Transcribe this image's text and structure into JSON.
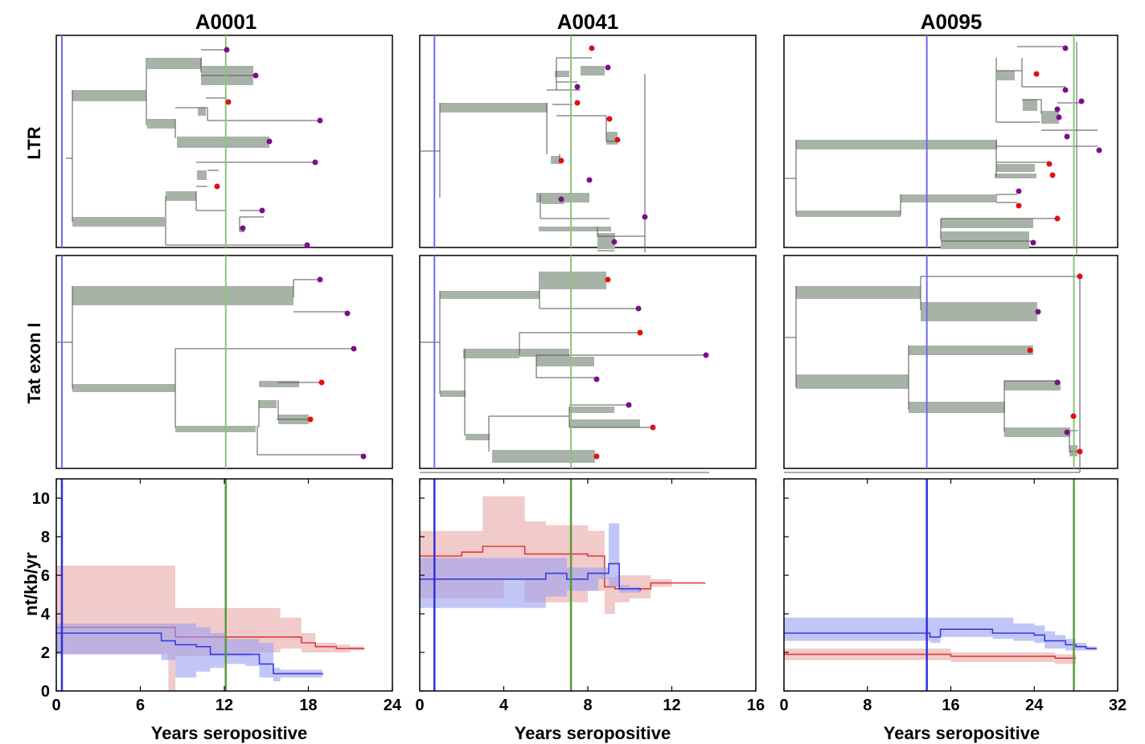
{
  "figure": {
    "columns": [
      "A0001",
      "A0041",
      "A0095"
    ],
    "row_labels": [
      "LTR",
      "Tat exon I"
    ],
    "ylabel": "nt/kb/yr",
    "xlabel": "Years seropositive"
  },
  "colors": {
    "blue_line": "#3b3bd6",
    "green_line": "#5a9a3a",
    "red_series": "#e03c3c",
    "red_band": "#e8a6a6",
    "blue_series": "#3a3ae0",
    "blue_band": "#9aa0f0",
    "tree_box": "#a8b3a8",
    "tip_red": "#e01010",
    "tip_purple": "#7a0f8a"
  },
  "chart_data": [
    {
      "type": "line",
      "title": "A0001",
      "xlabel": "Years seropositive",
      "ylabel": "nt/kb/yr",
      "xlim": [
        0,
        24
      ],
      "ylim": [
        0,
        11
      ],
      "xticks": [
        0,
        6,
        12,
        18,
        24
      ],
      "yticks": [
        0,
        2,
        4,
        6,
        8,
        10
      ],
      "vlines": {
        "blue": 0.4,
        "green": 12.1
      },
      "series": [
        {
          "color": "red",
          "x": [
            0,
            2,
            4,
            6,
            8,
            8.5,
            10,
            12,
            14,
            16,
            17.5,
            18.5,
            20,
            21,
            22
          ],
          "y": [
            3.3,
            3.3,
            3.3,
            3.3,
            3.3,
            2.8,
            2.8,
            2.8,
            2.8,
            2.8,
            2.5,
            2.3,
            2.2,
            2.2,
            2.2
          ],
          "lo": [
            1.9,
            1.9,
            1.9,
            1.9,
            0.0,
            1.8,
            1.8,
            1.8,
            2.0,
            2.2,
            2.0,
            2.0,
            2.0,
            2.1,
            2.1
          ],
          "hi": [
            6.5,
            6.5,
            6.5,
            6.5,
            6.5,
            4.3,
            4.3,
            4.3,
            4.3,
            3.8,
            3.0,
            2.5,
            2.4,
            2.3,
            2.3
          ]
        },
        {
          "color": "blue",
          "x": [
            0,
            2,
            4,
            6,
            7.5,
            8.5,
            10,
            11,
            12,
            13.5,
            14.5,
            15.5,
            16,
            17,
            18,
            19
          ],
          "y": [
            3.0,
            3.0,
            3.0,
            3.0,
            2.6,
            2.4,
            2.3,
            1.9,
            1.9,
            1.9,
            1.4,
            0.9,
            0.9,
            0.9,
            0.9,
            0.85
          ],
          "lo": [
            1.9,
            1.9,
            1.9,
            1.9,
            1.6,
            0.7,
            1.0,
            1.2,
            1.4,
            1.3,
            0.7,
            0.5,
            0.7,
            0.7,
            0.7,
            0.7
          ],
          "hi": [
            3.5,
            3.5,
            3.5,
            3.5,
            3.5,
            3.5,
            3.3,
            3.0,
            2.7,
            2.7,
            2.5,
            1.2,
            1.1,
            1.1,
            1.1,
            1.0
          ]
        }
      ]
    },
    {
      "type": "line",
      "title": "A0041",
      "xlabel": "Years seropositive",
      "ylabel": "",
      "xlim": [
        0,
        16
      ],
      "ylim": [
        0,
        11
      ],
      "xticks": [
        0,
        4,
        8,
        12,
        16
      ],
      "yticks": [],
      "vlines": {
        "blue": 0.7,
        "green": 7.2
      },
      "series": [
        {
          "color": "red",
          "x": [
            0,
            1,
            2,
            3,
            4,
            5,
            6,
            7,
            8,
            8.8,
            9.3,
            10,
            11,
            12,
            13.6
          ],
          "y": [
            7.0,
            7.0,
            7.2,
            7.5,
            7.5,
            7.1,
            7.1,
            7.1,
            7.0,
            5.4,
            5.3,
            5.3,
            5.6,
            5.6,
            5.6
          ],
          "lo": [
            4.8,
            4.8,
            4.8,
            4.8,
            5.8,
            4.6,
            4.6,
            4.6,
            5.2,
            4.0,
            4.6,
            4.8,
            5.4,
            5.6,
            5.6
          ],
          "hi": [
            8.3,
            8.3,
            8.3,
            10.1,
            10.1,
            8.8,
            8.6,
            8.6,
            8.3,
            5.9,
            6.0,
            6.0,
            5.8,
            5.6,
            5.6
          ]
        },
        {
          "color": "blue",
          "x": [
            0,
            1,
            2,
            3,
            4,
            5,
            6,
            7,
            8,
            8.5,
            9,
            9.5,
            10,
            10.5
          ],
          "y": [
            5.8,
            5.8,
            5.8,
            5.8,
            5.8,
            5.8,
            6.1,
            5.8,
            6.1,
            6.1,
            6.6,
            5.3,
            5.3,
            5.2
          ],
          "lo": [
            4.3,
            4.3,
            4.3,
            4.3,
            4.3,
            4.3,
            4.9,
            5.2,
            5.2,
            5.8,
            5.4,
            5.1,
            5.1,
            5.1
          ],
          "hi": [
            6.9,
            6.9,
            6.9,
            6.9,
            6.9,
            6.9,
            6.9,
            6.4,
            6.4,
            6.4,
            8.7,
            5.5,
            5.4,
            5.3
          ]
        }
      ]
    },
    {
      "type": "line",
      "title": "A0095",
      "xlabel": "Years seropositive",
      "ylabel": "",
      "xlim": [
        0,
        32
      ],
      "ylim": [
        0,
        11
      ],
      "xticks": [
        0,
        8,
        16,
        24,
        32
      ],
      "yticks": [],
      "vlines": {
        "blue": 13.7,
        "green": 27.8
      },
      "series": [
        {
          "color": "red",
          "x": [
            0,
            4,
            8,
            12,
            16,
            20,
            24,
            26,
            28
          ],
          "y": [
            1.9,
            1.9,
            1.9,
            1.9,
            1.8,
            1.8,
            1.8,
            1.7,
            1.7
          ],
          "lo": [
            1.6,
            1.6,
            1.6,
            1.6,
            1.5,
            1.5,
            1.5,
            1.4,
            1.4
          ],
          "hi": [
            2.2,
            2.2,
            2.2,
            2.2,
            2.0,
            2.0,
            2.0,
            1.9,
            1.9
          ]
        },
        {
          "color": "blue",
          "x": [
            0,
            4,
            8,
            12,
            14,
            15,
            18,
            20,
            22,
            24,
            25,
            26,
            27,
            28,
            29,
            30
          ],
          "y": [
            3.0,
            3.0,
            3.0,
            3.0,
            2.8,
            3.2,
            3.2,
            3.0,
            3.0,
            2.9,
            2.6,
            2.6,
            2.4,
            2.3,
            2.2,
            2.2
          ],
          "lo": [
            2.6,
            2.6,
            2.6,
            2.6,
            2.5,
            2.8,
            2.8,
            2.7,
            2.6,
            2.5,
            2.2,
            2.2,
            2.1,
            2.1,
            2.1,
            2.2
          ],
          "hi": [
            3.8,
            3.8,
            3.8,
            3.8,
            3.8,
            3.8,
            3.8,
            3.8,
            3.5,
            3.4,
            3.1,
            2.9,
            2.7,
            2.5,
            2.3,
            2.2
          ]
        }
      ]
    }
  ]
}
